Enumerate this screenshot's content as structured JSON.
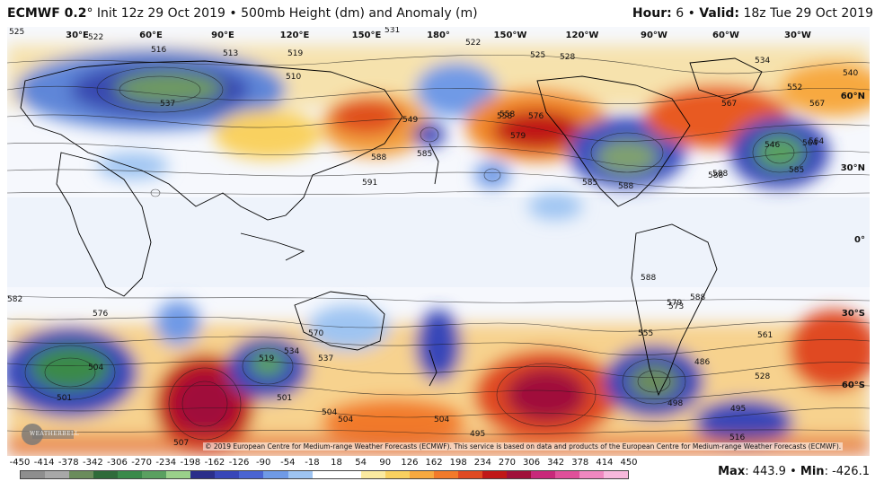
{
  "header": {
    "model": "ECMWF 0.2",
    "degree": "°",
    "init": "Init 12z 29 Oct 2019",
    "bullet": "•",
    "product": "500mb Height (dm) and Anomaly (m)",
    "hour_label": "Hour:",
    "hour_value": "6",
    "valid_label": "Valid:",
    "valid_value": "18z Tue 29 Oct 2019"
  },
  "map": {
    "lon_labels": [
      "30°E",
      "60°E",
      "90°E",
      "120°E",
      "150°E",
      "180°",
      "150°W",
      "120°W",
      "90°W",
      "60°W",
      "30°W"
    ],
    "lat_labels": [
      "60°N",
      "30°N",
      "0°",
      "30°S",
      "60°S"
    ],
    "contour_labels": [
      "525",
      "522",
      "516",
      "513",
      "519",
      "510",
      "537",
      "531",
      "522",
      "525",
      "528",
      "534",
      "540",
      "558",
      "576",
      "579",
      "549",
      "564",
      "588",
      "585",
      "591",
      "585",
      "588",
      "582",
      "576",
      "588",
      "570",
      "537",
      "534",
      "519",
      "504",
      "501",
      "504",
      "498",
      "495",
      "507",
      "501",
      "504",
      "555",
      "561",
      "567",
      "573",
      "588",
      "567",
      "552",
      "585",
      "588",
      "504",
      "516",
      "495",
      "486",
      "528",
      "558",
      "579",
      "546",
      "588",
      "564"
    ],
    "copyright": "© 2019 European Centre for Medium-range Weather Forecasts (ECMWF). This service is based on data and products of the European Centre for Medium-range Weather Forecasts (ECMWF).",
    "logo_text": "WEATHERBELL"
  },
  "legend": {
    "ticks": [
      "-450",
      "-414",
      "-378",
      "-342",
      "-306",
      "-270",
      "-234",
      "-198",
      "-162",
      "-126",
      "-90",
      "-54",
      "-18",
      "18",
      "54",
      "90",
      "126",
      "162",
      "198",
      "234",
      "270",
      "306",
      "342",
      "378",
      "414",
      "450"
    ],
    "colors": [
      "#8e8e8e",
      "#a8a8a8",
      "#6a8c5c",
      "#2f6b3a",
      "#3a8a4a",
      "#5aa060",
      "#9ad08a",
      "#2a2e8a",
      "#3846b8",
      "#4a64d2",
      "#6f9ae6",
      "#9ec4f2",
      "#ffffff",
      "#ffffff",
      "#fbeaa0",
      "#f9d160",
      "#f7a940",
      "#f27a2a",
      "#e04a22",
      "#c01818",
      "#a0103a",
      "#c8287a",
      "#e0509a",
      "#ef88c0",
      "#f7b8dc"
    ],
    "max_label": "Max",
    "max_value": "443.9",
    "min_label": "Min",
    "min_value": "-426.1",
    "sep": "•"
  }
}
